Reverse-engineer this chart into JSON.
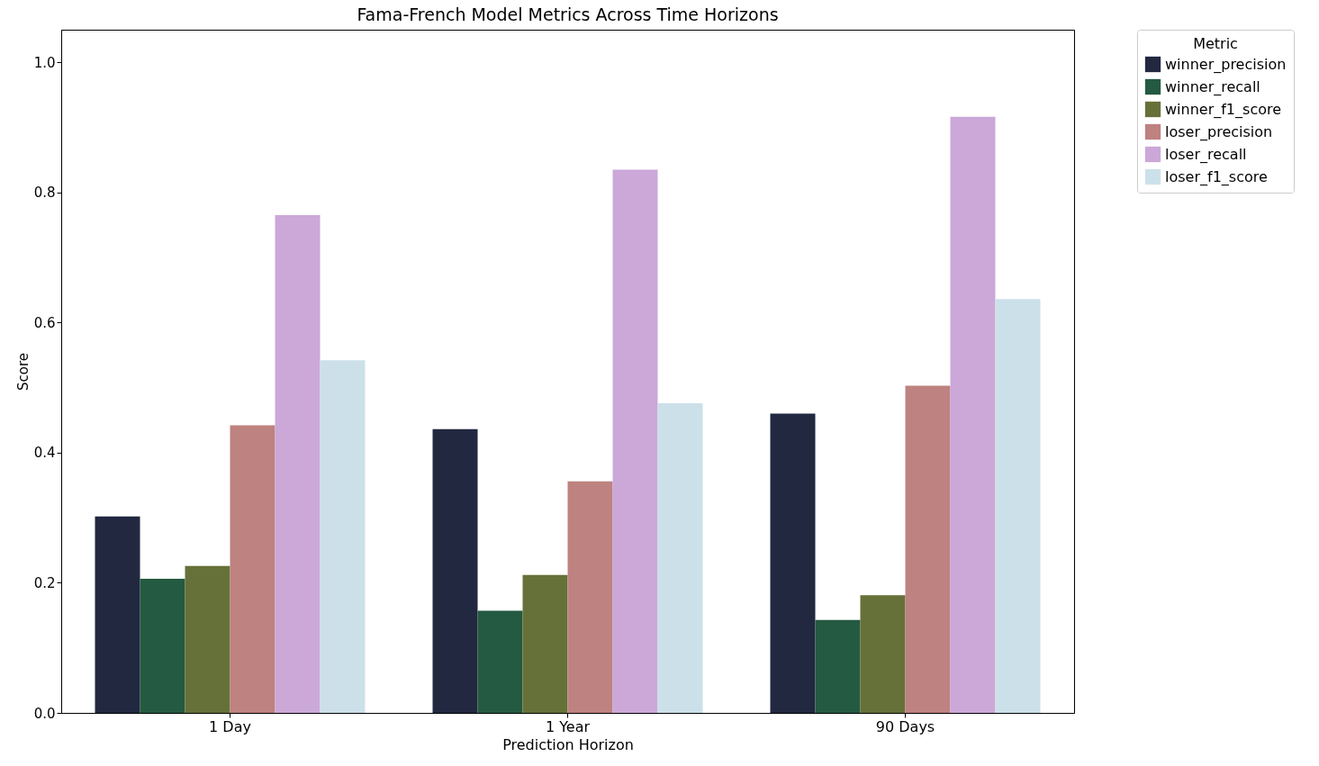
{
  "chart_data": {
    "type": "bar",
    "title": "Fama-French Model Metrics Across Time Horizons",
    "xlabel": "Prediction Horizon",
    "ylabel": "Score",
    "legend_title": "Metric",
    "legend": "top right",
    "grid": false,
    "categories": [
      "1 Day",
      "1 Year",
      "90 Days"
    ],
    "ylim": [
      0,
      1.05
    ],
    "yticks": [
      {
        "value": 0,
        "label": "0.0"
      },
      {
        "value": 0.2,
        "label": "0.2"
      },
      {
        "value": 0.4,
        "label": "0.4"
      },
      {
        "value": 0.6,
        "label": "0.6"
      },
      {
        "value": 0.8,
        "label": "0.8"
      },
      {
        "value": 1,
        "label": "1.0"
      }
    ],
    "series": [
      {
        "name": "winner_precision",
        "color": "#212840",
        "values": [
          0.302,
          0.436,
          0.46
        ]
      },
      {
        "name": "winner_recall",
        "color": "#245a41",
        "values": [
          0.206,
          0.157,
          0.143
        ]
      },
      {
        "name": "winner_f1_score",
        "color": "#667139",
        "values": [
          0.226,
          0.212,
          0.181
        ]
      },
      {
        "name": "loser_precision",
        "color": "#be8280",
        "values": [
          0.442,
          0.356,
          0.503
        ]
      },
      {
        "name": "loser_recall",
        "color": "#cba8d8",
        "values": [
          0.765,
          0.835,
          0.916
        ]
      },
      {
        "name": "loser_f1_score",
        "color": "#cce0ea",
        "values": [
          0.542,
          0.476,
          0.636
        ]
      }
    ]
  }
}
